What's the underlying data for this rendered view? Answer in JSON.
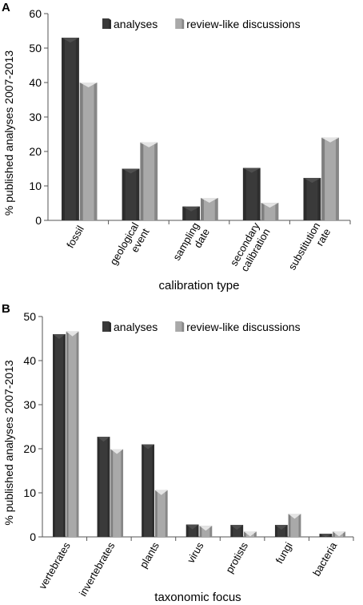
{
  "colors": {
    "analyses": "#3a3a3a",
    "review": "#a9a9a9",
    "axis": "#555555"
  },
  "chart_data": [
    {
      "panel_label": "A",
      "type": "bar",
      "xlabel": "calibration type",
      "ylabel": "% published analyses 2007-2013",
      "ylim": [
        0,
        60
      ],
      "yticks": [
        0,
        10,
        20,
        30,
        40,
        50,
        60
      ],
      "grid": false,
      "legend": "top-right",
      "categories": [
        [
          "fossil"
        ],
        [
          "geological",
          "event"
        ],
        [
          "sampling",
          "date"
        ],
        [
          "secondary",
          "calibration"
        ],
        [
          "substitution",
          "rate"
        ]
      ],
      "series": [
        {
          "name": "analyses",
          "values": [
            53,
            15,
            4,
            15.2,
            12.3
          ]
        },
        {
          "name": "review-like discussions",
          "values": [
            40,
            22.6,
            6.5,
            5.1,
            24
          ]
        }
      ]
    },
    {
      "panel_label": "B",
      "type": "bar",
      "xlabel": "taxonomic focus",
      "ylabel": "% published analyses 2007-2013",
      "ylim": [
        0,
        50
      ],
      "yticks": [
        0,
        10,
        20,
        30,
        40,
        50
      ],
      "grid": false,
      "legend": "top-right",
      "categories": [
        [
          "vertebrates"
        ],
        [
          "invertebrates"
        ],
        [
          "plants"
        ],
        [
          "virus"
        ],
        [
          "protists"
        ],
        [
          "fungi"
        ],
        [
          "bacteria"
        ]
      ],
      "series": [
        {
          "name": "analyses",
          "values": [
            46,
            22.7,
            21,
            2.8,
            2.7,
            2.7,
            0.7
          ]
        },
        {
          "name": "review-like discussions",
          "values": [
            46.6,
            19.9,
            10.6,
            2.5,
            1.2,
            5.2,
            1.2
          ]
        }
      ]
    }
  ]
}
